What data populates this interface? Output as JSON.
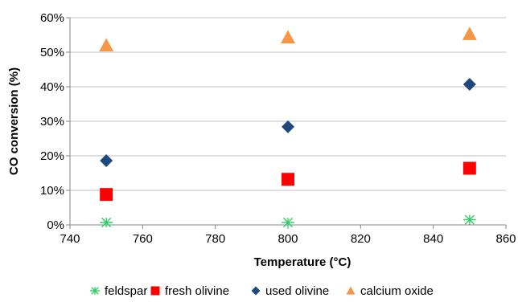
{
  "chart_data": {
    "type": "scatter",
    "xlabel": "Temperature (°C)",
    "ylabel": "CO conversion (%)",
    "xlim": [
      740,
      860
    ],
    "ylim": [
      0,
      0.6
    ],
    "x_ticks": [
      740,
      760,
      780,
      800,
      820,
      840,
      860
    ],
    "y_ticks": [
      0,
      0.1,
      0.2,
      0.3,
      0.4,
      0.5,
      0.6
    ],
    "y_tick_labels": [
      "0%",
      "10%",
      "20%",
      "30%",
      "40%",
      "50%",
      "60%"
    ],
    "grid": "horizontal",
    "legend_position": "bottom",
    "series": [
      {
        "name": "feldspar",
        "marker": "asterisk",
        "color": "#33cc66",
        "x": [
          750,
          800,
          850
        ],
        "y": [
          0.007,
          0.007,
          0.015
        ]
      },
      {
        "name": "fresh olivine",
        "marker": "square",
        "color": "#ff0000",
        "x": [
          750,
          800,
          850
        ],
        "y": [
          0.088,
          0.132,
          0.164
        ]
      },
      {
        "name": "used olivine",
        "marker": "diamond",
        "color": "#1f497d",
        "x": [
          750,
          800,
          850
        ],
        "y": [
          0.186,
          0.284,
          0.407
        ]
      },
      {
        "name": "calcium oxide",
        "marker": "triangle",
        "color": "#f79646",
        "x": [
          750,
          800,
          850
        ],
        "y": [
          0.52,
          0.543,
          0.553
        ]
      }
    ]
  }
}
